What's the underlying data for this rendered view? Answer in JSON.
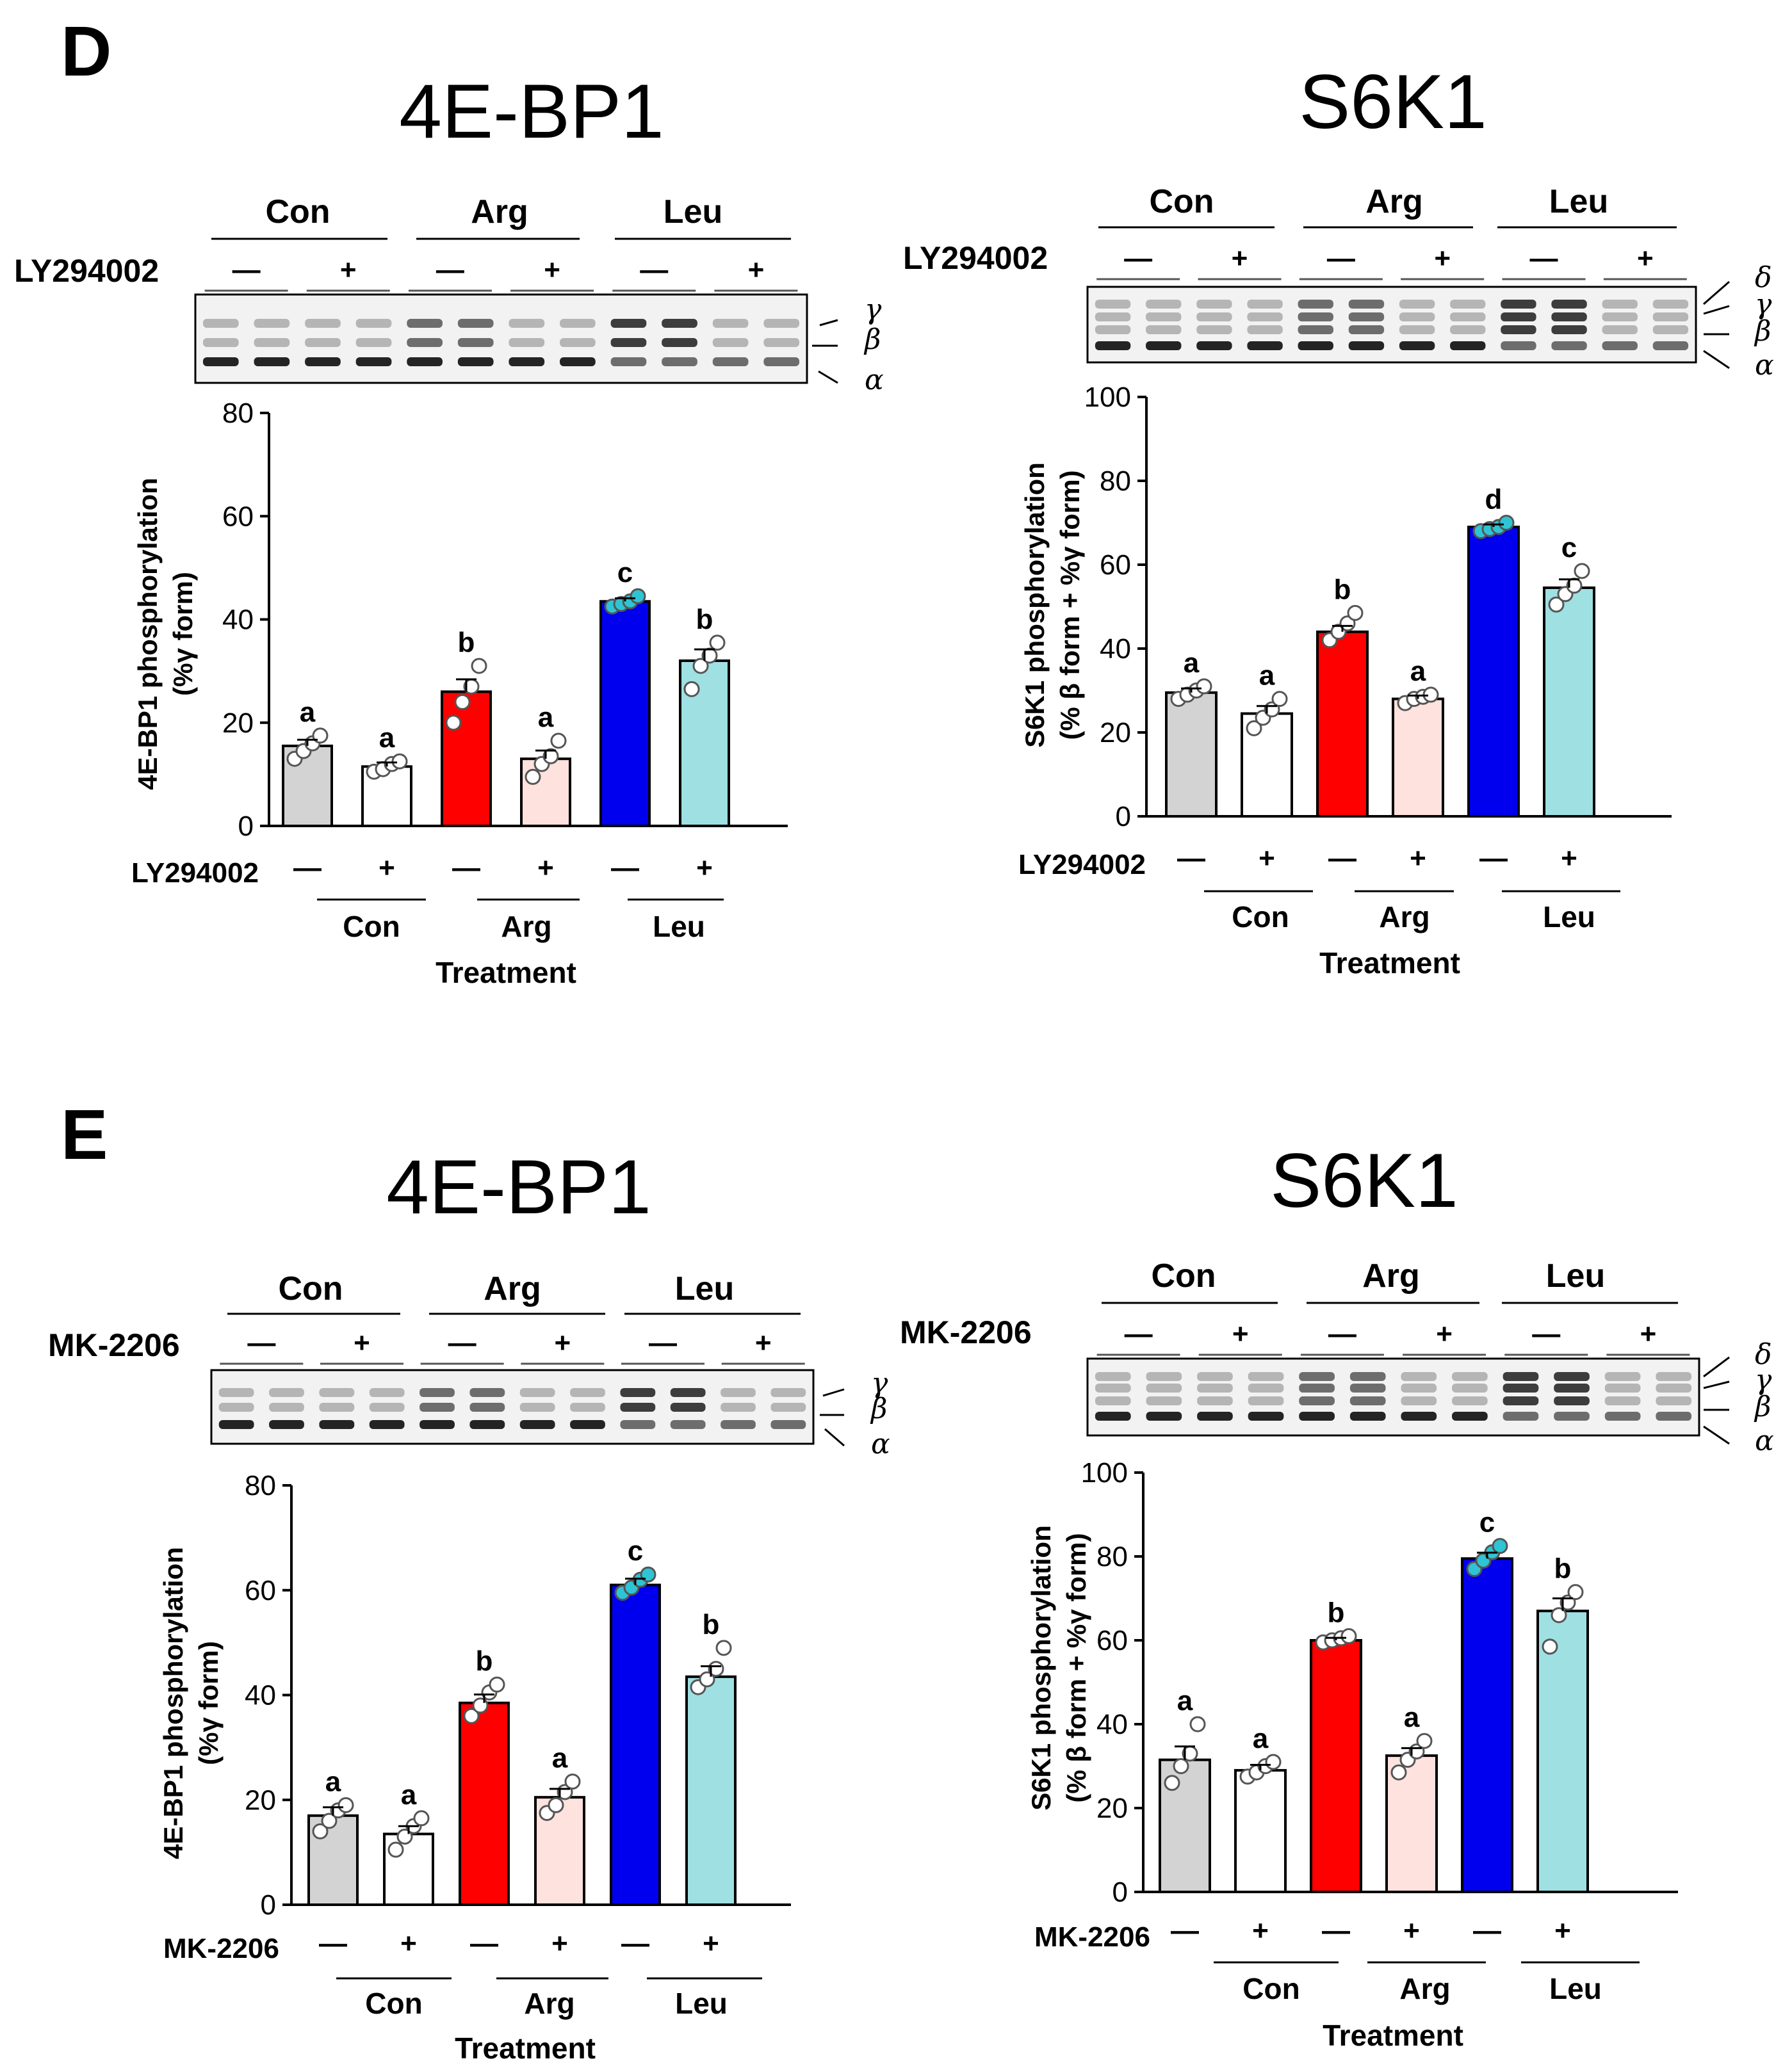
{
  "figure": {
    "panel_letters": [
      "D",
      "E"
    ],
    "treatment_label": "Treatment",
    "groups": [
      "Con",
      "Arg",
      "Leu"
    ],
    "signs": [
      "—",
      "+"
    ],
    "band_labels_4ebp1": [
      "γ",
      "β",
      "α"
    ],
    "band_labels_s6k1": [
      "δ",
      "γ",
      "β",
      "α"
    ],
    "colors": {
      "con_minus": "#d3d3d3",
      "con_plus": "#ffffff",
      "arg_minus": "#ff0000",
      "arg_plus": "#fde2de",
      "leu_minus": "#0000ee",
      "leu_plus": "#9fe0e3",
      "dot_filled": "#2ec4d4"
    }
  },
  "chart_data": [
    {
      "panel": "D",
      "title": "4E-BP1",
      "type": "bar",
      "inhibitor": "LY294002",
      "ylabel_line1": "4E-BP1 phosphorylation",
      "ylabel_line2": "(%γ form)",
      "xlabel": "Treatment",
      "ylim": [
        0,
        80
      ],
      "yticks": [
        0,
        20,
        40,
        60,
        80
      ],
      "categories": [
        "Con −",
        "Con +",
        "Arg −",
        "Arg +",
        "Leu −",
        "Leu +"
      ],
      "values": [
        15.5,
        11.5,
        26,
        13,
        43.5,
        32
      ],
      "errors": [
        1.2,
        0.8,
        2.4,
        1.6,
        0.6,
        2.2
      ],
      "letters": [
        "a",
        "a",
        "b",
        "a",
        "c",
        "b"
      ],
      "points": [
        [
          13,
          14.5,
          16,
          17.5
        ],
        [
          10.5,
          11,
          12,
          12.5
        ],
        [
          20,
          24,
          27,
          31
        ],
        [
          9.5,
          12,
          13.5,
          16.5
        ],
        [
          42.5,
          43,
          43.5,
          44.5
        ],
        [
          26.5,
          31,
          33,
          35.5
        ]
      ]
    },
    {
      "panel": "D",
      "title": "S6K1",
      "type": "bar",
      "inhibitor": "LY294002",
      "ylabel_line1": "S6K1 phosphorylation",
      "ylabel_line2": "(% β form + %γ form)",
      "xlabel": "Treatment",
      "ylim": [
        0,
        100
      ],
      "yticks": [
        0,
        20,
        40,
        60,
        80,
        100
      ],
      "categories": [
        "Con −",
        "Con +",
        "Arg −",
        "Arg +",
        "Leu −",
        "Leu +"
      ],
      "values": [
        29.5,
        24.5,
        44,
        28,
        69,
        54.5
      ],
      "errors": [
        1.0,
        1.8,
        1.4,
        0.8,
        0.6,
        2.0
      ],
      "letters": [
        "a",
        "a",
        "b",
        "a",
        "d",
        "c"
      ],
      "points": [
        [
          28,
          29,
          30,
          31
        ],
        [
          21,
          23.5,
          25.5,
          28
        ],
        [
          42,
          44,
          46,
          48.5
        ],
        [
          27,
          28,
          28.5,
          29
        ],
        [
          68,
          68.5,
          69,
          70
        ],
        [
          50.5,
          53,
          55,
          58.5
        ]
      ]
    },
    {
      "panel": "E",
      "title": "4E-BP1",
      "type": "bar",
      "inhibitor": "MK-2206",
      "ylabel_line1": "4E-BP1 phosphorylation",
      "ylabel_line2": "(%γ form)",
      "xlabel": "Treatment",
      "ylim": [
        0,
        80
      ],
      "yticks": [
        0,
        20,
        40,
        60,
        80
      ],
      "categories": [
        "Con −",
        "Con +",
        "Arg −",
        "Arg +",
        "Leu −",
        "Leu +"
      ],
      "values": [
        17,
        13.5,
        38.5,
        20.5,
        61,
        43.5
      ],
      "errors": [
        1.6,
        1.5,
        1.6,
        1.6,
        1.2,
        2.0
      ],
      "letters": [
        "a",
        "a",
        "b",
        "a",
        "c",
        "b"
      ],
      "points": [
        [
          14,
          16,
          18,
          19
        ],
        [
          10.5,
          13,
          15,
          16.5
        ],
        [
          36,
          38,
          40.5,
          42
        ],
        [
          17.5,
          19,
          21.5,
          23.5
        ],
        [
          59.5,
          60.5,
          62,
          63
        ],
        [
          41.5,
          43,
          45,
          49
        ]
      ]
    },
    {
      "panel": "E",
      "title": "S6K1",
      "type": "bar",
      "inhibitor": "MK-2206",
      "ylabel_line1": "S6K1 phosphorylation",
      "ylabel_line2": "(% β form + %γ form)",
      "xlabel": "Treatment",
      "ylim": [
        0,
        100
      ],
      "yticks": [
        0,
        20,
        40,
        60,
        80,
        100
      ],
      "categories": [
        "Con −",
        "Con +",
        "Arg −",
        "Arg +",
        "Leu −",
        "Leu +"
      ],
      "values": [
        31.5,
        29,
        60,
        32.5,
        79.5,
        67
      ],
      "errors": [
        3.2,
        1.3,
        0.6,
        1.8,
        1.4,
        3.0
      ],
      "letters": [
        "a",
        "a",
        "b",
        "a",
        "c",
        "b"
      ],
      "points": [
        [
          26,
          30,
          33,
          40
        ],
        [
          27.5,
          28.5,
          30,
          31
        ],
        [
          59.5,
          60,
          60.5,
          61
        ],
        [
          28.5,
          31.5,
          33.5,
          36
        ],
        [
          77,
          79,
          81,
          82.5
        ],
        [
          58.5,
          66,
          69,
          71.5
        ]
      ]
    }
  ]
}
